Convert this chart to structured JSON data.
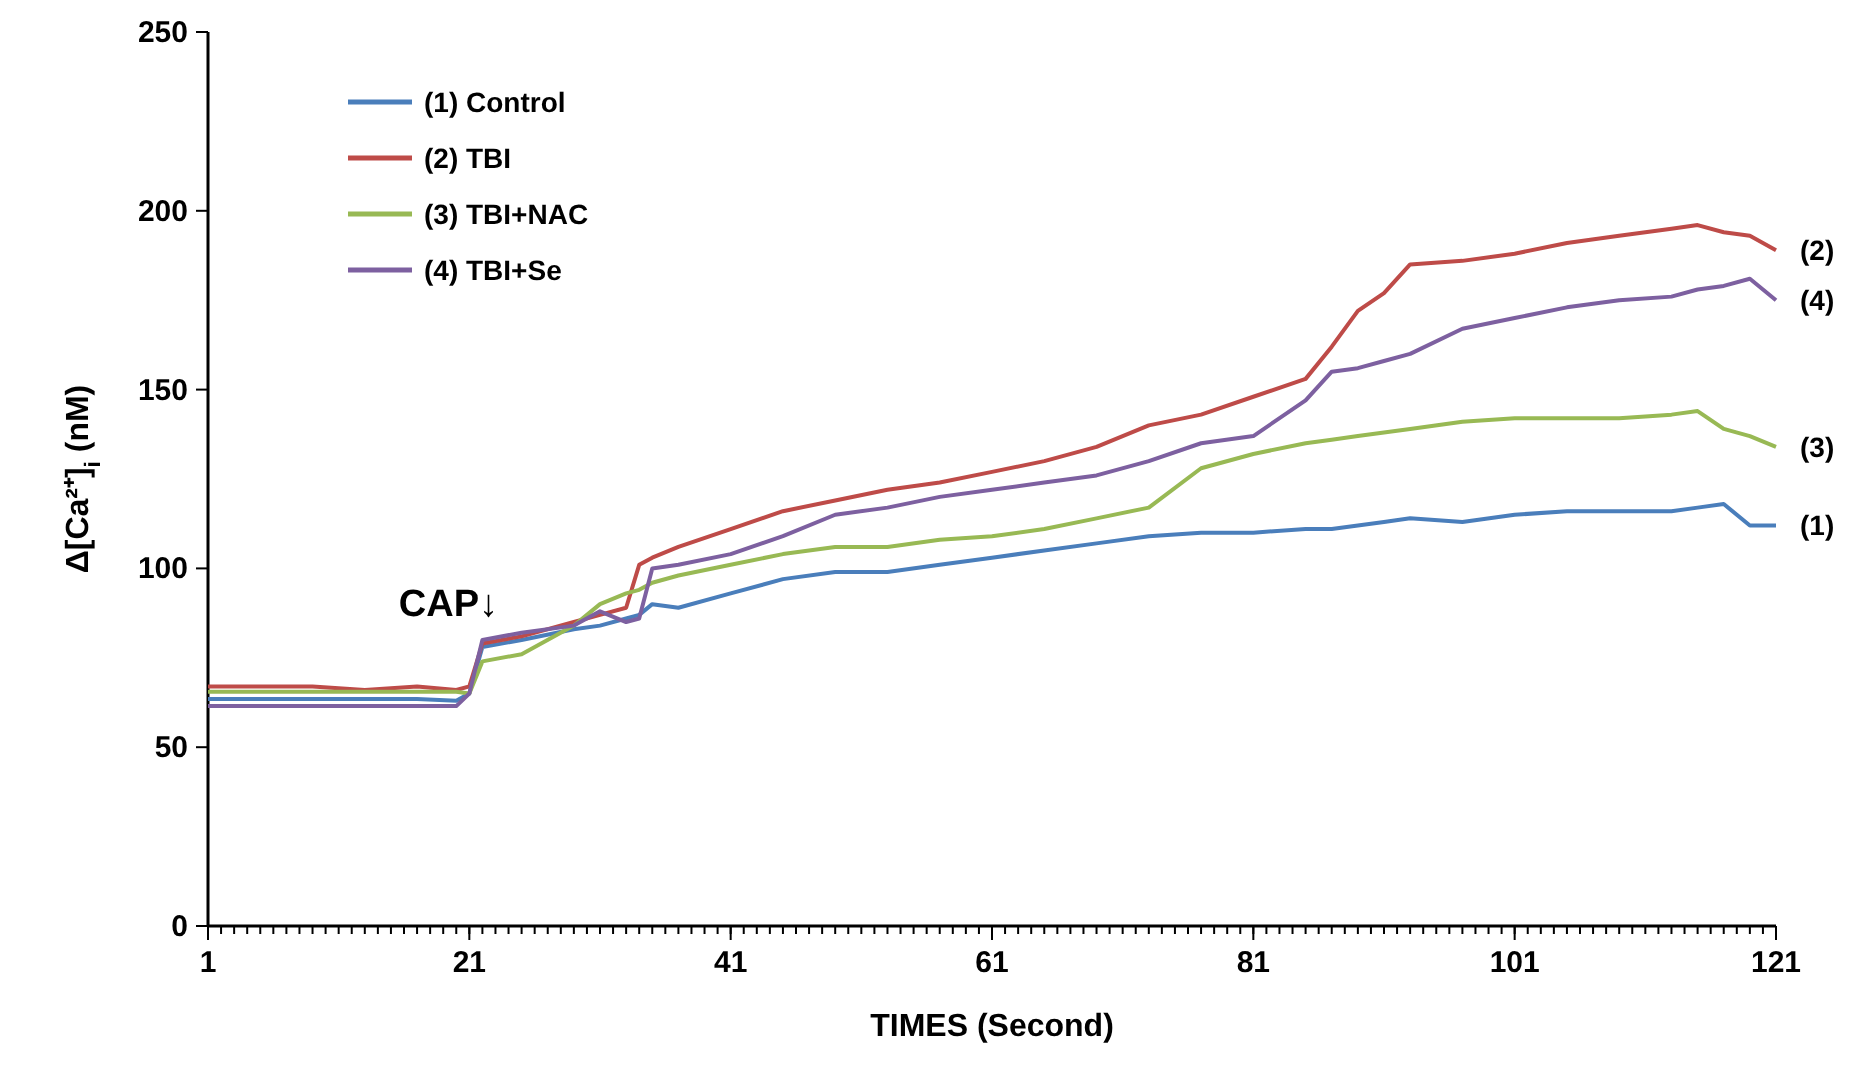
{
  "chart_data": {
    "type": "line",
    "xlabel": "TIMES (Second)",
    "ylabel": "Δ[Ca²⁺]$_{i}$ (nM)",
    "x": [
      1,
      5,
      9,
      13,
      17,
      20,
      21,
      22,
      25,
      29,
      31,
      33,
      34,
      35,
      37,
      41,
      45,
      49,
      53,
      57,
      61,
      65,
      69,
      73,
      77,
      81,
      85,
      87,
      89,
      91,
      93,
      97,
      101,
      105,
      109,
      113,
      115,
      117,
      119,
      121
    ],
    "xlim": [
      1,
      121
    ],
    "xticks": [
      1,
      21,
      41,
      61,
      81,
      101,
      121
    ],
    "ylim": [
      0,
      250
    ],
    "yticks": [
      0,
      50,
      100,
      150,
      200,
      250
    ],
    "grid": false,
    "legend": "top left",
    "marker": "none",
    "line_style": "solid",
    "series": [
      {
        "name": "(1) Control",
        "color": "#4a7ebb",
        "values": [
          63.5,
          63.5,
          63.5,
          63.5,
          63.5,
          63,
          65,
          78,
          80,
          83,
          84,
          86,
          87,
          90,
          89,
          93,
          97,
          99,
          99,
          101,
          103,
          105,
          107,
          109,
          110,
          110,
          111,
          111,
          112,
          113,
          114,
          113,
          115,
          116,
          116,
          116,
          117,
          118,
          112,
          112
        ]
      },
      {
        "name": "(2) TBI",
        "color": "#be4b48",
        "values": [
          67,
          67,
          67,
          66,
          67,
          66,
          67,
          79,
          81,
          85,
          87,
          89,
          101,
          103,
          106,
          111,
          116,
          119,
          122,
          124,
          127,
          130,
          134,
          140,
          143,
          148,
          153,
          162,
          172,
          177,
          185,
          186,
          188,
          191,
          193,
          195,
          196,
          194,
          193,
          189
        ]
      },
      {
        "name": "(3) TBI+NAC",
        "color": "#98b954",
        "values": [
          65.5,
          65.5,
          65.5,
          65.5,
          65.5,
          65.5,
          65,
          74,
          76,
          84,
          90,
          93,
          94,
          96,
          98,
          101,
          104,
          106,
          106,
          108,
          109,
          111,
          114,
          117,
          128,
          132,
          135,
          136,
          137,
          138,
          139,
          141,
          142,
          142,
          142,
          143,
          144,
          139,
          137,
          134
        ]
      },
      {
        "name": "(4) TBI+Se",
        "color": "#7d60a0",
        "values": [
          61.5,
          61.5,
          61.5,
          61.5,
          61.5,
          61.5,
          65,
          80,
          82,
          84,
          88,
          85,
          86,
          100,
          101,
          104,
          109,
          115,
          117,
          120,
          122,
          124,
          126,
          130,
          135,
          137,
          147,
          155,
          156,
          158,
          160,
          167,
          170,
          173,
          175,
          176,
          178,
          179,
          181,
          175
        ]
      }
    ],
    "annotations": [
      "CAP↓",
      "(1)",
      "(2)",
      "(3)",
      "(4)"
    ]
  }
}
